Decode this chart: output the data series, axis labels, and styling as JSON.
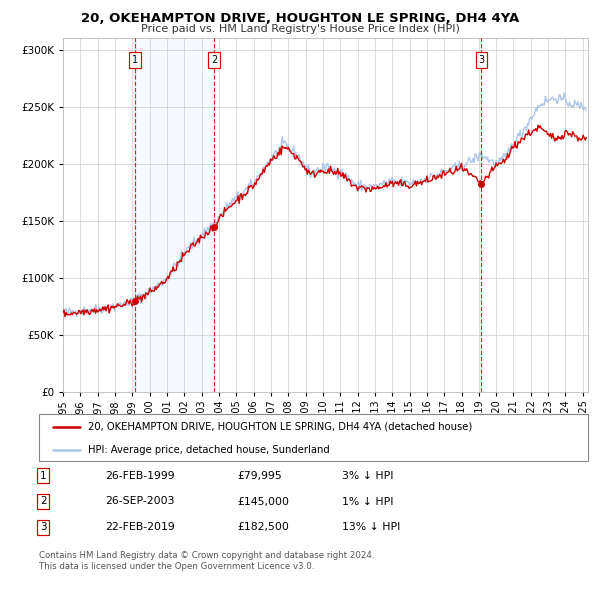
{
  "title": "20, OKEHAMPTON DRIVE, HOUGHTON LE SPRING, DH4 4YA",
  "subtitle": "Price paid vs. HM Land Registry's House Price Index (HPI)",
  "legend_line1": "20, OKEHAMPTON DRIVE, HOUGHTON LE SPRING, DH4 4YA (detached house)",
  "legend_line2": "HPI: Average price, detached house, Sunderland",
  "transactions": [
    {
      "num": 1,
      "date": "26-FEB-1999",
      "price": 79995,
      "pct": "3%",
      "direction": "↓",
      "year_x": 1999.15
    },
    {
      "num": 2,
      "date": "26-SEP-2003",
      "price": 145000,
      "pct": "1%",
      "direction": "↓",
      "year_x": 2003.73
    },
    {
      "num": 3,
      "date": "22-FEB-2019",
      "price": 182500,
      "pct": "13%",
      "direction": "↓",
      "year_x": 2019.15
    }
  ],
  "footnote1": "Contains HM Land Registry data © Crown copyright and database right 2024.",
  "footnote2": "This data is licensed under the Open Government Licence v3.0.",
  "hpi_color": "#aec6e8",
  "price_color": "#cc0000",
  "marker_color": "#cc0000",
  "vline_color": "#cc0000",
  "shade_color": "#ddeeff",
  "grid_color": "#cccccc",
  "background_color": "#ffffff",
  "ylim": [
    0,
    310000
  ],
  "xlim_start": 1995.0,
  "xlim_end": 2025.3,
  "yticks": [
    0,
    50000,
    100000,
    150000,
    200000,
    250000,
    300000
  ],
  "xticks": [
    1995,
    1996,
    1997,
    1998,
    1999,
    2000,
    2001,
    2002,
    2003,
    2004,
    2005,
    2006,
    2007,
    2008,
    2009,
    2010,
    2011,
    2012,
    2013,
    2014,
    2015,
    2016,
    2017,
    2018,
    2019,
    2020,
    2021,
    2022,
    2023,
    2024,
    2025
  ]
}
